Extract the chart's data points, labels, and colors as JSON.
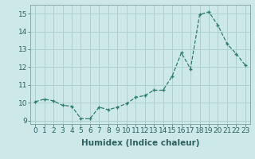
{
  "x": [
    0,
    1,
    2,
    3,
    4,
    5,
    6,
    7,
    8,
    9,
    10,
    11,
    12,
    13,
    14,
    15,
    16,
    17,
    18,
    19,
    20,
    21,
    22,
    23
  ],
  "y": [
    10.05,
    10.2,
    10.1,
    9.85,
    9.8,
    9.1,
    9.1,
    9.75,
    9.6,
    9.75,
    9.95,
    10.3,
    10.4,
    10.7,
    10.7,
    11.5,
    12.8,
    11.9,
    14.95,
    15.1,
    14.35,
    13.3,
    12.75,
    12.1
  ],
  "line_color": "#2e7d6e",
  "marker": "+",
  "bg_color": "#cce8e8",
  "grid_color": "#aacccc",
  "xlabel": "Humidex (Indice chaleur)",
  "ylim": [
    8.8,
    15.5
  ],
  "xlim": [
    -0.5,
    23.5
  ],
  "yticks": [
    9,
    10,
    11,
    12,
    13,
    14,
    15
  ],
  "xticks": [
    0,
    1,
    2,
    3,
    4,
    5,
    6,
    7,
    8,
    9,
    10,
    11,
    12,
    13,
    14,
    15,
    16,
    17,
    18,
    19,
    20,
    21,
    22,
    23
  ],
  "tick_font_size": 6.5,
  "label_font_size": 7.5
}
